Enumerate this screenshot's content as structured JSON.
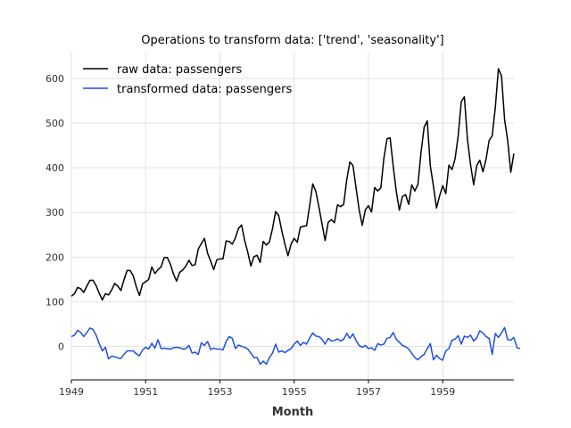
{
  "chart_data": {
    "type": "line",
    "title": "Operations to transform data: ['trend', 'seasonality']",
    "xlabel": "Month",
    "ylabel": "",
    "xlim": [
      1949.0,
      1960.917
    ],
    "ylim": [
      -75,
      660
    ],
    "x_ticks": [
      1949,
      1951,
      1953,
      1955,
      1957,
      1959
    ],
    "y_ticks": [
      0,
      100,
      200,
      300,
      400,
      500,
      600
    ],
    "grid": true,
    "legend_position": "top-left",
    "x_start": 1949.0,
    "x_step": 0.083333,
    "series": [
      {
        "name": "raw data: passengers",
        "color": "#000000",
        "values": [
          112,
          118,
          132,
          129,
          121,
          135,
          148,
          148,
          136,
          119,
          104,
          118,
          115,
          126,
          141,
          135,
          125,
          149,
          170,
          170,
          158,
          133,
          114,
          140,
          145,
          150,
          178,
          163,
          172,
          178,
          199,
          199,
          184,
          162,
          146,
          166,
          171,
          180,
          193,
          181,
          183,
          218,
          230,
          242,
          209,
          191,
          172,
          194,
          196,
          196,
          236,
          235,
          229,
          243,
          264,
          272,
          237,
          211,
          180,
          201,
          204,
          188,
          235,
          227,
          234,
          264,
          302,
          293,
          259,
          229,
          203,
          229,
          242,
          233,
          267,
          269,
          270,
          315,
          364,
          347,
          312,
          274,
          237,
          278,
          284,
          277,
          317,
          313,
          318,
          374,
          413,
          405,
          355,
          306,
          271,
          306,
          315,
          301,
          356,
          348,
          355,
          422,
          465,
          467,
          404,
          347,
          305,
          336,
          340,
          318,
          362,
          348,
          363,
          435,
          491,
          505,
          404,
          359,
          310,
          337,
          360,
          342,
          406,
          396,
          420,
          472,
          548,
          559,
          463,
          407,
          362,
          405,
          417,
          391,
          419,
          461,
          472,
          535,
          622,
          606,
          508,
          461,
          390,
          432
        ]
      },
      {
        "name": "transformed data: passengers",
        "color": "#1f4fe0",
        "values": [
          22,
          25,
          36,
          31,
          22,
          31,
          41,
          38,
          25,
          6,
          -10,
          -2,
          -28,
          -22,
          -23,
          -26,
          -27,
          -18,
          -10,
          -10,
          -10,
          -17,
          -21,
          -8,
          -2,
          -6,
          7,
          -4,
          15,
          -5,
          -4,
          -5,
          -6,
          -3,
          -2,
          -3,
          -6,
          -5,
          2,
          -15,
          -13,
          -18,
          8,
          2,
          11,
          -7,
          -4,
          -6,
          -6,
          -8,
          11,
          22,
          18,
          -5,
          3,
          0,
          -2,
          -6,
          -15,
          -25,
          -25,
          -40,
          -33,
          -40,
          -25,
          -15,
          5,
          -13,
          -10,
          -14,
          -9,
          -5,
          5,
          12,
          2,
          9,
          5,
          19,
          30,
          23,
          22,
          16,
          5,
          18,
          12,
          13,
          17,
          12,
          16,
          29,
          18,
          28,
          13,
          2,
          -2,
          2,
          -5,
          -3,
          -9,
          6,
          3,
          5,
          18,
          20,
          31,
          16,
          9,
          2,
          -1,
          -6,
          -16,
          -25,
          -30,
          -23,
          -18,
          -5,
          6,
          -30,
          -20,
          -27,
          -31,
          -10,
          -5,
          14,
          16,
          24,
          5,
          23,
          20,
          25,
          12,
          19,
          35,
          30,
          22,
          18,
          -18,
          29,
          20,
          30,
          42,
          15,
          14,
          20,
          -3,
          -5
        ]
      }
    ]
  }
}
